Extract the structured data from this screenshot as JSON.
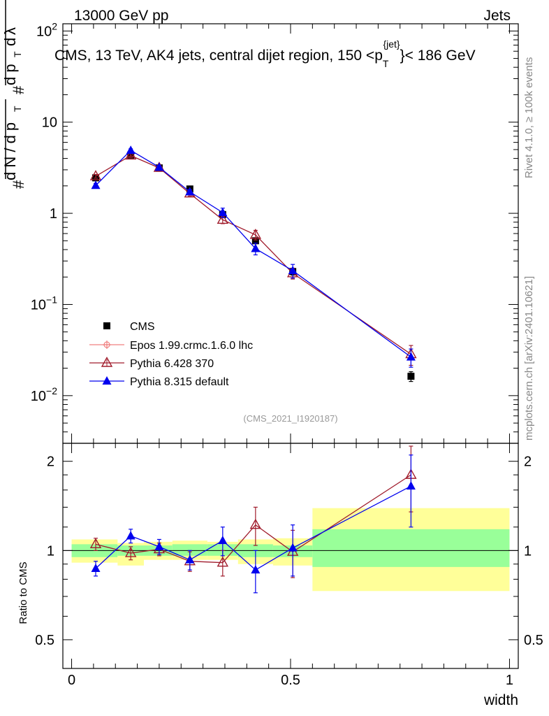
{
  "header": {
    "left": "13000 GeV pp",
    "right": "Jets"
  },
  "side_labels": {
    "rivet": "Rivet 4.1.0, ≥ 100k events",
    "mcplots": "mcplots.cern.ch [arXiv:2401.10621]"
  },
  "chart_data": {
    "type": "scatter",
    "title_main": "CMS, 13 TeV, AK4 jets, central dijet region, 150 <p",
    "title_sub": "T",
    "title_sup": "{jet}",
    "title_end": "}< 186 GeV",
    "analysis_tag": "(CMS_2021_I1920187)",
    "xlabel": "width",
    "ylabel_upper": "1 / dN / dp_T  d²N / dp_T dλ",
    "ylabel_ratio": "Ratio to CMS",
    "xlim": [
      -0.02,
      1.02
    ],
    "ylim": [
      0.003,
      120
    ],
    "ratio_ylim": [
      0.4,
      2.3
    ],
    "x_ticks": [
      0,
      0.5,
      1
    ],
    "x_tick_labels": [
      "0",
      "0.5",
      "1"
    ],
    "y_ticks": [
      0.01,
      0.1,
      1,
      10,
      100
    ],
    "y_tick_labels": [
      {
        "base": "10",
        "exp": "−2"
      },
      {
        "base": "10",
        "exp": "−1"
      },
      {
        "base": "1",
        "exp": ""
      },
      {
        "base": "10",
        "exp": ""
      },
      {
        "base": "10",
        "exp": "2"
      }
    ],
    "ratio_ticks": [
      0.5,
      1,
      2
    ],
    "ratio_tick_labels": [
      "0.5",
      "1",
      "2"
    ],
    "bins": [
      {
        "lo": 0.0,
        "hi": 0.105,
        "band_yellow": [
          0.91,
          1.09
        ],
        "band_green": [
          0.95,
          1.05
        ]
      },
      {
        "lo": 0.105,
        "hi": 0.165,
        "band_yellow": [
          0.89,
          1.06
        ],
        "band_green": [
          0.96,
          1.04
        ]
      },
      {
        "lo": 0.165,
        "hi": 0.23,
        "band_yellow": [
          0.93,
          1.07
        ],
        "band_green": [
          0.96,
          1.04
        ]
      },
      {
        "lo": 0.23,
        "hi": 0.31,
        "band_yellow": [
          0.93,
          1.08
        ],
        "band_green": [
          0.96,
          1.05
        ]
      },
      {
        "lo": 0.31,
        "hi": 0.38,
        "band_yellow": [
          0.93,
          1.07
        ],
        "band_green": [
          0.96,
          1.05
        ]
      },
      {
        "lo": 0.38,
        "hi": 0.46,
        "band_yellow": [
          0.9,
          1.09
        ],
        "band_green": [
          0.95,
          1.05
        ]
      },
      {
        "lo": 0.46,
        "hi": 0.55,
        "band_yellow": [
          0.89,
          1.1
        ],
        "band_green": [
          0.95,
          1.04
        ]
      },
      {
        "lo": 0.55,
        "hi": 1.0,
        "band_yellow": [
          0.73,
          1.39
        ],
        "band_green": [
          0.88,
          1.18
        ]
      }
    ],
    "series": [
      {
        "name": "CMS",
        "color": "#000000",
        "marker": "square",
        "x": [
          0.055,
          0.135,
          0.2,
          0.27,
          0.345,
          0.42,
          0.505,
          0.775
        ],
        "y": [
          2.45,
          4.35,
          3.15,
          1.85,
          0.97,
          0.5,
          0.23,
          0.0163
        ],
        "yerr": [
          0.1,
          0.15,
          0.1,
          0.08,
          0.05,
          0.03,
          0.02,
          0.002
        ]
      },
      {
        "name": "Epos 1.99.crmc.1.6.0 lhc",
        "color": "#f08080",
        "marker": "open-cross",
        "x": [],
        "y": [],
        "yerr": [],
        "ratio": [],
        "ratio_err": []
      },
      {
        "name": "Pythia 6.428 370",
        "color": "#a01c2c",
        "marker": "open-triangle",
        "x": [
          0.055,
          0.135,
          0.2,
          0.27,
          0.345,
          0.42,
          0.505,
          0.775
        ],
        "y": [
          2.55,
          4.3,
          3.15,
          1.65,
          0.85,
          0.58,
          0.22,
          0.0285
        ],
        "yerr": [
          0.12,
          0.2,
          0.12,
          0.1,
          0.08,
          0.07,
          0.03,
          0.007
        ],
        "ratio": [
          1.05,
          0.98,
          1.01,
          0.92,
          0.91,
          1.22,
          0.99,
          1.8
        ],
        "ratio_err": [
          0.05,
          0.05,
          0.05,
          0.07,
          0.09,
          0.18,
          0.18,
          0.45
        ]
      },
      {
        "name": "Pythia 8.315 default",
        "color": "#0000ee",
        "marker": "triangle",
        "x": [
          0.055,
          0.135,
          0.2,
          0.27,
          0.345,
          0.42,
          0.505,
          0.775
        ],
        "y": [
          2.02,
          4.9,
          3.2,
          1.72,
          1.02,
          0.41,
          0.235,
          0.0265
        ],
        "yerr": [
          0.1,
          0.2,
          0.12,
          0.1,
          0.12,
          0.06,
          0.04,
          0.006
        ],
        "ratio": [
          0.87,
          1.12,
          1.03,
          0.93,
          1.08,
          0.86,
          1.02,
          1.65
        ],
        "ratio_err": [
          0.05,
          0.06,
          0.06,
          0.07,
          0.12,
          0.14,
          0.2,
          0.45
        ]
      }
    ],
    "legend_position": "bottom-left",
    "colors": {
      "band_yellow": "#ffff99",
      "band_green": "#99ff99"
    }
  }
}
